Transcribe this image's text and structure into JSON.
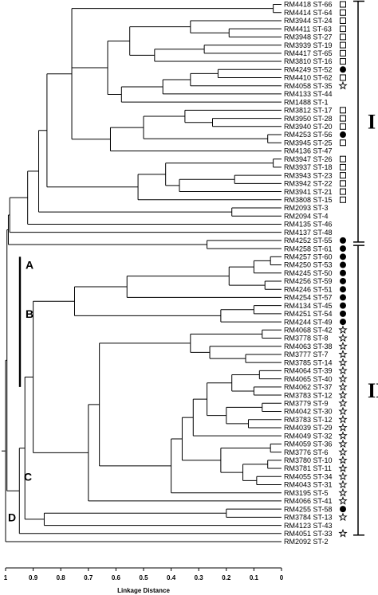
{
  "chart_data": {
    "type": "dendrogram",
    "xlabel": "Linkage Distance",
    "xlim": [
      1,
      0
    ],
    "x_ticks": [
      "1",
      "0.9",
      "0.8",
      "0.7",
      "0.6",
      "0.5",
      "0.4",
      "0.3",
      "0.2",
      "0.1",
      "0"
    ],
    "leaves": [
      {
        "label": "RM4418 ST-66",
        "marker": "square"
      },
      {
        "label": "RM4414 ST-64",
        "marker": "square"
      },
      {
        "label": "RM3944 ST-24",
        "marker": "square"
      },
      {
        "label": "RM4411 ST-63",
        "marker": "square"
      },
      {
        "label": "RM3948 ST-27",
        "marker": "square"
      },
      {
        "label": "RM3939 ST-19",
        "marker": "square"
      },
      {
        "label": "RM4417 ST-65",
        "marker": "square"
      },
      {
        "label": "RM3810 ST-16",
        "marker": "square"
      },
      {
        "label": "RM4249 ST-52",
        "marker": "circle"
      },
      {
        "label": "RM4410 ST-62",
        "marker": "square"
      },
      {
        "label": "RM4058 ST-35",
        "marker": "star"
      },
      {
        "label": "RM4133 ST-44",
        "marker": ""
      },
      {
        "label": "RM1488 ST-1",
        "marker": ""
      },
      {
        "label": "RM3812 ST-17",
        "marker": "square"
      },
      {
        "label": "RM3950 ST-28",
        "marker": "square"
      },
      {
        "label": "RM3940 ST-20",
        "marker": "square"
      },
      {
        "label": "RM4253 ST-56",
        "marker": "circle"
      },
      {
        "label": "RM3945 ST-25",
        "marker": "square"
      },
      {
        "label": "RM4136 ST-47",
        "marker": ""
      },
      {
        "label": "RM3947 ST-26",
        "marker": "square"
      },
      {
        "label": "RM3937 ST-18",
        "marker": "square"
      },
      {
        "label": "RM3943 ST-23",
        "marker": "square"
      },
      {
        "label": "RM3942 ST-22",
        "marker": "square"
      },
      {
        "label": "RM3941 ST-21",
        "marker": "square"
      },
      {
        "label": "RM3808 ST-15",
        "marker": "square"
      },
      {
        "label": "RM2093 ST-3",
        "marker": ""
      },
      {
        "label": "RM2094 ST-4",
        "marker": ""
      },
      {
        "label": "RM4135 ST-46",
        "marker": ""
      },
      {
        "label": "RM4137 ST-48",
        "marker": ""
      },
      {
        "label": "RM4252 ST-55",
        "marker": "circle"
      },
      {
        "label": "RM4258 ST-61",
        "marker": "circle"
      },
      {
        "label": "RM4257 ST-60",
        "marker": "circle"
      },
      {
        "label": "RM4250 ST-53",
        "marker": "circle"
      },
      {
        "label": "RM4245 ST-50",
        "marker": "circle"
      },
      {
        "label": "RM4256 ST-59",
        "marker": "circle"
      },
      {
        "label": "RM4246 ST-51",
        "marker": "circle"
      },
      {
        "label": "RM4254 ST-57",
        "marker": "circle"
      },
      {
        "label": "RM4134 ST-45",
        "marker": "circle"
      },
      {
        "label": "RM4251 ST-54",
        "marker": "circle"
      },
      {
        "label": "RM4244 ST-49",
        "marker": "circle"
      },
      {
        "label": "RM4068 ST-42",
        "marker": "star"
      },
      {
        "label": "RM3778 ST-8",
        "marker": "star"
      },
      {
        "label": "RM4063 ST-38",
        "marker": "star"
      },
      {
        "label": "RM3777 ST-7",
        "marker": "star"
      },
      {
        "label": "RM3785 ST-14",
        "marker": "star"
      },
      {
        "label": "RM4064 ST-39",
        "marker": "star"
      },
      {
        "label": "RM4065 ST-40",
        "marker": "star"
      },
      {
        "label": "RM4062 ST-37",
        "marker": "star"
      },
      {
        "label": "RM3783 ST-12",
        "marker": "star"
      },
      {
        "label": "RM3779 ST-9",
        "marker": "star"
      },
      {
        "label": "RM4042 ST-30",
        "marker": "star"
      },
      {
        "label": "RM3783 ST-12",
        "marker": "star"
      },
      {
        "label": "RM4039 ST-29",
        "marker": "star"
      },
      {
        "label": "RM4049 ST-32",
        "marker": "star"
      },
      {
        "label": "RM4059 ST-36",
        "marker": "star"
      },
      {
        "label": "RM3776 ST-6",
        "marker": "star"
      },
      {
        "label": "RM3780 ST-10",
        "marker": "star"
      },
      {
        "label": "RM3781 ST-11",
        "marker": "star"
      },
      {
        "label": "RM4055 ST-34",
        "marker": "star"
      },
      {
        "label": "RM4043 ST-31",
        "marker": "star"
      },
      {
        "label": "RM3195 ST-5",
        "marker": "star"
      },
      {
        "label": "RM4066 ST-41",
        "marker": "star"
      },
      {
        "label": "RM4255 ST-58",
        "marker": "circle"
      },
      {
        "label": "RM3784 ST-13",
        "marker": "star"
      },
      {
        "label": "RM4123 ST-43",
        "marker": ""
      },
      {
        "label": "RM4051 ST-33",
        "marker": "star"
      },
      {
        "label": "RM2092 ST-2",
        "marker": ""
      }
    ],
    "merges": [
      {
        "dist": 0.03,
        "leaves": [
          0,
          1
        ]
      },
      {
        "dist": 0.19,
        "leaves": [
          3,
          4
        ]
      },
      {
        "dist": 0.33,
        "leaves": [
          2,
          3,
          4
        ]
      },
      {
        "dist": 0.28,
        "leaves": [
          5,
          6
        ]
      },
      {
        "dist": 0.46,
        "leaves": [
          5,
          6,
          7
        ]
      },
      {
        "dist": 0.55,
        "leaves": [
          2,
          3,
          4,
          5,
          6,
          7
        ]
      },
      {
        "dist": 0.23,
        "leaves": [
          8,
          9
        ]
      },
      {
        "dist": 0.33,
        "leaves": [
          8,
          9,
          10
        ]
      },
      {
        "dist": 0.43,
        "leaves": [
          8,
          9,
          10,
          11
        ]
      },
      {
        "dist": 0.58,
        "leaves": [
          8,
          9,
          10,
          11,
          12
        ]
      },
      {
        "dist": 0.63,
        "leaves": [
          2,
          3,
          4,
          5,
          6,
          7,
          8,
          9,
          10,
          11,
          12
        ]
      },
      {
        "dist": 0.25,
        "leaves": [
          14,
          15
        ]
      },
      {
        "dist": 0.35,
        "leaves": [
          13,
          14,
          15
        ]
      },
      {
        "dist": 0.05,
        "leaves": [
          16,
          17
        ]
      },
      {
        "dist": 0.5,
        "leaves": [
          13,
          14,
          15,
          16,
          17
        ]
      },
      {
        "dist": 0.62,
        "leaves": [
          13,
          14,
          15,
          16,
          17,
          18
        ]
      },
      {
        "dist": 0.76,
        "leaves": [
          0,
          1,
          2,
          3,
          4,
          5,
          6,
          7,
          8,
          9,
          10,
          11,
          12,
          13,
          14,
          15,
          16,
          17,
          18
        ]
      },
      {
        "dist": 0.03,
        "leaves": [
          19,
          20
        ]
      },
      {
        "dist": 0.42,
        "leaves": [
          19,
          20,
          21,
          22,
          23
        ]
      },
      {
        "dist": 0.17,
        "leaves": [
          21,
          22
        ]
      },
      {
        "dist": 0.37,
        "leaves": [
          21,
          22,
          23
        ]
      },
      {
        "dist": 0.52,
        "leaves": [
          19,
          20,
          21,
          22,
          23,
          24
        ]
      },
      {
        "dist": 0.85,
        "leaves": [
          0,
          1,
          2,
          3,
          4,
          5,
          6,
          7,
          8,
          9,
          10,
          11,
          12,
          13,
          14,
          15,
          16,
          17,
          18,
          19,
          20,
          21,
          22,
          23,
          24
        ]
      },
      {
        "dist": 0.18,
        "leaves": [
          25,
          26
        ]
      },
      {
        "dist": 0.88,
        "leaves": [
          0,
          1,
          2,
          3,
          4,
          5,
          6,
          7,
          8,
          9,
          10,
          11,
          12,
          13,
          14,
          15,
          16,
          17,
          18,
          19,
          20,
          21,
          22,
          23,
          24,
          25,
          26
        ]
      },
      {
        "dist": 0.92,
        "leaves": [
          0,
          1,
          2,
          3,
          4,
          5,
          6,
          7,
          8,
          9,
          10,
          11,
          12,
          13,
          14,
          15,
          16,
          17,
          18,
          19,
          20,
          21,
          22,
          23,
          24,
          25,
          26,
          27
        ]
      },
      {
        "dist": 0.985,
        "leaves": [
          0,
          1,
          2,
          3,
          4,
          5,
          6,
          7,
          8,
          9,
          10,
          11,
          12,
          13,
          14,
          15,
          16,
          17,
          18,
          19,
          20,
          21,
          22,
          23,
          24,
          25,
          26,
          27,
          28
        ]
      },
      {
        "dist": 0.27,
        "leaves": [
          29,
          30
        ]
      },
      {
        "dist": 0.99,
        "leaves": [
          0,
          1,
          2,
          3,
          4,
          5,
          6,
          7,
          8,
          9,
          10,
          11,
          12,
          13,
          14,
          15,
          16,
          17,
          18,
          19,
          20,
          21,
          22,
          23,
          24,
          25,
          26,
          27,
          28,
          29,
          30
        ]
      },
      {
        "dist": 0.04,
        "leaves": [
          31,
          32
        ]
      },
      {
        "dist": 0.1,
        "leaves": [
          31,
          32,
          33
        ]
      },
      {
        "dist": 0.06,
        "leaves": [
          34,
          35
        ]
      },
      {
        "dist": 0.19,
        "leaves": [
          31,
          32,
          33,
          34,
          35
        ]
      },
      {
        "dist": 0.56,
        "leaves": [
          31,
          32,
          33,
          34,
          35,
          36
        ]
      },
      {
        "dist": 0.1,
        "leaves": [
          37,
          38
        ]
      },
      {
        "dist": 0.22,
        "leaves": [
          37,
          38,
          39
        ]
      },
      {
        "dist": 0.75,
        "leaves": [
          31,
          32,
          33,
          34,
          35,
          36,
          37,
          38,
          39
        ]
      },
      {
        "dist": 0.07,
        "leaves": [
          40,
          41
        ]
      },
      {
        "dist": 0.13,
        "leaves": [
          43,
          44
        ]
      },
      {
        "dist": 0.26,
        "leaves": [
          42,
          43,
          44
        ]
      },
      {
        "dist": 0.33,
        "leaves": [
          40,
          41,
          42,
          43,
          44
        ]
      },
      {
        "dist": 0.08,
        "leaves": [
          45,
          46
        ]
      },
      {
        "dist": 0.1,
        "leaves": [
          47,
          48
        ]
      },
      {
        "dist": 0.18,
        "leaves": [
          45,
          46,
          47,
          48
        ]
      },
      {
        "dist": 0.07,
        "leaves": [
          49,
          50
        ]
      },
      {
        "dist": 0.12,
        "leaves": [
          51,
          52
        ]
      },
      {
        "dist": 0.2,
        "leaves": [
          49,
          50,
          51,
          52
        ]
      },
      {
        "dist": 0.27,
        "leaves": [
          45,
          46,
          47,
          48,
          49,
          50,
          51,
          52
        ]
      },
      {
        "dist": 0.32,
        "leaves": [
          45,
          46,
          47,
          48,
          49,
          50,
          51,
          52,
          53
        ]
      },
      {
        "dist": 0.04,
        "leaves": [
          54,
          55
        ]
      },
      {
        "dist": 0.05,
        "leaves": [
          56,
          57
        ]
      },
      {
        "dist": 0.09,
        "leaves": [
          58,
          59
        ]
      },
      {
        "dist": 0.14,
        "leaves": [
          56,
          57,
          58,
          59
        ]
      },
      {
        "dist": 0.22,
        "leaves": [
          54,
          55,
          56,
          57,
          58,
          59
        ]
      },
      {
        "dist": 0.36,
        "leaves": [
          45,
          46,
          47,
          48,
          49,
          50,
          51,
          52,
          53,
          54,
          55,
          56,
          57,
          58,
          59
        ]
      },
      {
        "dist": 0.4,
        "leaves": [
          45,
          46,
          47,
          48,
          49,
          50,
          51,
          52,
          53,
          54,
          55,
          56,
          57,
          58,
          59,
          60
        ]
      },
      {
        "dist": 0.66,
        "leaves": [
          40,
          41,
          42,
          43,
          44,
          45,
          46,
          47,
          48,
          49,
          50,
          51,
          52,
          53,
          54,
          55,
          56,
          57,
          58,
          59,
          60
        ]
      },
      {
        "dist": 0.7,
        "leaves": [
          40,
          41,
          42,
          43,
          44,
          45,
          46,
          47,
          48,
          49,
          50,
          51,
          52,
          53,
          54,
          55,
          56,
          57,
          58,
          59,
          60,
          61
        ]
      },
      {
        "dist": 0.9,
        "leaves": [
          31,
          32,
          33,
          34,
          35,
          36,
          37,
          38,
          39,
          40,
          41,
          42,
          43,
          44,
          45,
          46,
          47,
          48,
          49,
          50,
          51,
          52,
          53,
          54,
          55,
          56,
          57,
          58,
          59,
          60,
          61
        ]
      },
      {
        "dist": 0.2,
        "leaves": [
          62,
          63
        ]
      },
      {
        "dist": 0.86,
        "leaves": [
          62,
          63,
          64
        ]
      },
      {
        "dist": 0.93,
        "leaves": [
          31,
          32,
          33,
          34,
          35,
          36,
          37,
          38,
          39,
          40,
          41,
          42,
          43,
          44,
          45,
          46,
          47,
          48,
          49,
          50,
          51,
          52,
          53,
          54,
          55,
          56,
          57,
          58,
          59,
          60,
          61,
          62,
          63,
          64
        ]
      },
      {
        "dist": 0.95,
        "leaves": [
          31,
          32,
          33,
          34,
          35,
          36,
          37,
          38,
          39,
          40,
          41,
          42,
          43,
          44,
          45,
          46,
          47,
          48,
          49,
          50,
          51,
          52,
          53,
          54,
          55,
          56,
          57,
          58,
          59,
          60,
          61,
          62,
          63,
          64,
          65
        ]
      },
      {
        "dist": 0.995,
        "leaves": [
          0,
          1,
          2,
          3,
          4,
          5,
          6,
          7,
          8,
          9,
          10,
          11,
          12,
          13,
          14,
          15,
          16,
          17,
          18,
          19,
          20,
          21,
          22,
          23,
          24,
          25,
          26,
          27,
          28,
          29,
          30,
          31,
          32,
          33,
          34,
          35,
          36,
          37,
          38,
          39,
          40,
          41,
          42,
          43,
          44,
          45,
          46,
          47,
          48,
          49,
          50,
          51,
          52,
          53,
          54,
          55,
          56,
          57,
          58,
          59,
          60,
          61,
          62,
          63,
          64,
          65
        ]
      },
      {
        "dist": 1.0,
        "leaves": [
          0,
          1,
          2,
          3,
          4,
          5,
          6,
          7,
          8,
          9,
          10,
          11,
          12,
          13,
          14,
          15,
          16,
          17,
          18,
          19,
          20,
          21,
          22,
          23,
          24,
          25,
          26,
          27,
          28,
          29,
          30,
          31,
          32,
          33,
          34,
          35,
          36,
          37,
          38,
          39,
          40,
          41,
          42,
          43,
          44,
          45,
          46,
          47,
          48,
          49,
          50,
          51,
          52,
          53,
          54,
          55,
          56,
          57,
          58,
          59,
          60,
          61,
          62,
          63,
          64,
          65,
          66
        ]
      }
    ],
    "cluster_labels": [
      {
        "text": "A",
        "leaf": 32
      },
      {
        "text": "B",
        "leaf": 38
      },
      {
        "text": "C",
        "leaf": 58
      },
      {
        "text": "D",
        "leaf": 63
      }
    ],
    "groups": [
      {
        "label": "I",
        "from_leaf": 0,
        "to_leaf": 29
      },
      {
        "label": "II",
        "from_leaf": 30,
        "to_leaf": 65
      }
    ],
    "colors": {
      "lines": "#000000",
      "background": "#ffffff"
    }
  }
}
